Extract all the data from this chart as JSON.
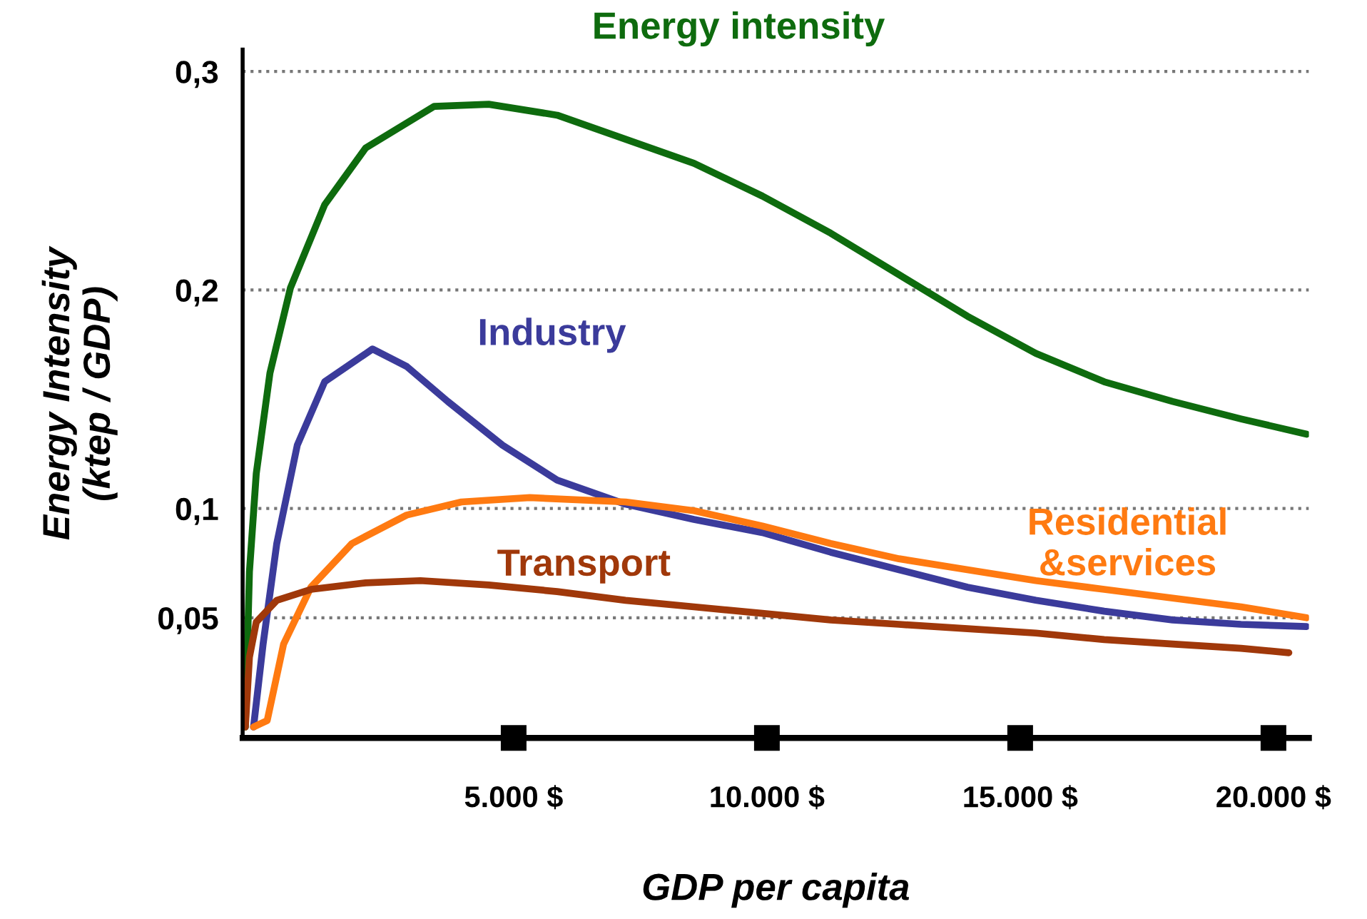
{
  "chart_data": {
    "type": "line",
    "xlabel": "GDP per capita",
    "ylabel": "Energy Intensity\n(ktep / GDP)",
    "xlim": [
      -350,
      20700
    ],
    "ylim": [
      -0.005,
      0.31
    ],
    "xticks": [
      {
        "value": 5000,
        "label": "5.000 $"
      },
      {
        "value": 10000,
        "label": "10.000 $"
      },
      {
        "value": 15000,
        "label": "15.000 $"
      },
      {
        "value": 20000,
        "label": "20.000 $"
      }
    ],
    "yticks": [
      {
        "value": 0.05,
        "label": "0,05"
      },
      {
        "value": 0.1,
        "label": "0,1"
      },
      {
        "value": 0.2,
        "label": "0,2"
      },
      {
        "value": 0.3,
        "label": "0,3"
      }
    ],
    "grid": "y",
    "marker": "none",
    "line_style": "solid",
    "series": [
      {
        "name": "Energy intensity",
        "color": "#0e6b0e",
        "x": [
          -297,
          -216,
          -81,
          189,
          594,
          1269,
          2079,
          3429,
          4509,
          5859,
          7209,
          8559,
          9909,
          11259,
          12609,
          13959,
          15309,
          16659,
          18009,
          19359,
          20655
        ],
        "values": [
          0,
          0.071,
          0.116,
          0.162,
          0.201,
          0.239,
          0.265,
          0.284,
          0.285,
          0.28,
          0.269,
          0.258,
          0.243,
          0.226,
          0.207,
          0.188,
          0.171,
          0.158,
          0.149,
          0.141,
          0.134
        ]
      },
      {
        "name": "Industry",
        "color": "#3b3b9b",
        "x": [
          -135,
          54,
          324,
          729,
          1269,
          2214,
          2889,
          3699,
          4779,
          5859,
          7209,
          8559,
          9909,
          11259,
          12609,
          13959,
          15309,
          16659,
          18009,
          19359,
          20655
        ],
        "values": [
          0,
          0.038,
          0.084,
          0.129,
          0.158,
          0.173,
          0.165,
          0.149,
          0.129,
          0.113,
          0.102,
          0.095,
          0.089,
          0.08,
          0.072,
          0.064,
          0.058,
          0.053,
          0.049,
          0.047,
          0.046
        ]
      },
      {
        "name": "Residential\n&services",
        "color": "#ff7a11",
        "x": [
          -135,
          135,
          459,
          999,
          1809,
          2889,
          3969,
          5319,
          7209,
          8559,
          9909,
          11259,
          12609,
          13959,
          15309,
          16659,
          18009,
          19359,
          20655
        ],
        "values": [
          0,
          0.003,
          0.038,
          0.064,
          0.084,
          0.097,
          0.103,
          0.105,
          0.103,
          0.099,
          0.092,
          0.084,
          0.077,
          0.072,
          0.067,
          0.063,
          0.059,
          0.055,
          0.05
        ]
      },
      {
        "name": "Transport",
        "color": "#a0380a",
        "x": [
          -297,
          -216,
          -81,
          324,
          999,
          2079,
          3159,
          4509,
          5859,
          7209,
          8559,
          9909,
          11259,
          12609,
          13959,
          15309,
          16659,
          18009,
          19359,
          20304
        ],
        "values": [
          0,
          0.032,
          0.048,
          0.058,
          0.063,
          0.066,
          0.067,
          0.065,
          0.062,
          0.058,
          0.055,
          0.052,
          0.049,
          0.047,
          0.045,
          0.043,
          0.04,
          0.038,
          0.036,
          0.034
        ]
      }
    ]
  }
}
